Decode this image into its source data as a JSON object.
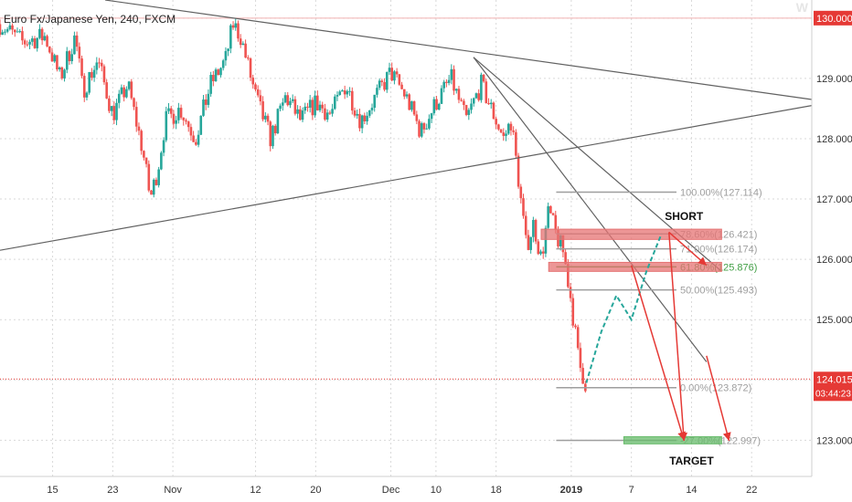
{
  "symbol_title": "Euro Fx/Japanese Yen, 240, FXCM",
  "watermark": "W",
  "colors": {
    "up": "#26a69a",
    "down": "#ef5350",
    "price_line": "#e53935",
    "grid": "#d9d9d9",
    "fib_gray": "#9e9e9e",
    "fib_green": "#43a047",
    "zone_red": "#e57373",
    "zone_green": "#66bb6a",
    "arrow": "#e53935",
    "trend": "#616161"
  },
  "chart_data": {
    "type": "candlestick",
    "title": "Euro Fx/Japanese Yen, 240, FXCM",
    "ylim": [
      122.4,
      130.3
    ],
    "y_ticks": [
      {
        "value": 130.0,
        "label": "130.000"
      },
      {
        "value": 129.0,
        "label": "129.000"
      },
      {
        "value": 128.0,
        "label": "128.000"
      },
      {
        "value": 127.0,
        "label": "127.000"
      },
      {
        "value": 126.0,
        "label": "126.000"
      },
      {
        "value": 125.0,
        "label": "125.000"
      },
      {
        "value": 124.0,
        "label": "124.000"
      },
      {
        "value": 123.0,
        "label": "123.000"
      }
    ],
    "x_ticks": [
      {
        "t": 1,
        "label": "15"
      },
      {
        "t": 9,
        "label": "23"
      },
      {
        "t": 17,
        "label": "Nov"
      },
      {
        "t": 28,
        "label": "12"
      },
      {
        "t": 36,
        "label": "20"
      },
      {
        "t": 46,
        "label": "Dec"
      },
      {
        "t": 52,
        "label": "10"
      },
      {
        "t": 60,
        "label": "18"
      },
      {
        "t": 70,
        "label": "2019"
      },
      {
        "t": 78,
        "label": "7"
      },
      {
        "t": 86,
        "label": "14"
      },
      {
        "t": 94,
        "label": "22"
      }
    ],
    "x_range": [
      -6,
      102
    ],
    "close_path": [
      [
        -6,
        129.9
      ],
      [
        -3,
        129.6
      ],
      [
        0,
        129.7
      ],
      [
        2,
        129.0
      ],
      [
        4,
        129.7
      ],
      [
        5,
        128.8
      ],
      [
        7,
        129.3
      ],
      [
        9,
        128.4
      ],
      [
        11,
        128.9
      ],
      [
        13,
        127.8
      ],
      [
        14,
        127.0
      ],
      [
        15,
        127.5
      ],
      [
        16,
        128.3
      ],
      [
        18,
        128.5
      ],
      [
        20,
        128.0
      ],
      [
        22,
        128.9
      ],
      [
        24,
        129.3
      ],
      [
        25,
        129.9
      ],
      [
        26,
        129.7
      ],
      [
        28,
        128.7
      ],
      [
        30,
        128.0
      ],
      [
        32,
        128.7
      ],
      [
        34,
        128.3
      ],
      [
        36,
        128.6
      ],
      [
        38,
        128.4
      ],
      [
        40,
        128.9
      ],
      [
        42,
        128.3
      ],
      [
        44,
        128.7
      ],
      [
        46,
        129.1
      ],
      [
        48,
        128.7
      ],
      [
        50,
        128.1
      ],
      [
        52,
        128.6
      ],
      [
        54,
        129.0
      ],
      [
        56,
        128.3
      ],
      [
        58,
        128.9
      ],
      [
        60,
        128.3
      ],
      [
        61,
        128.0
      ],
      [
        62,
        128.3
      ],
      [
        63,
        127.3
      ],
      [
        64,
        126.2
      ],
      [
        65,
        126.6
      ],
      [
        66,
        126.0
      ],
      [
        67,
        126.8
      ],
      [
        68,
        126.4
      ],
      [
        69,
        126.1
      ],
      [
        70,
        125.3
      ],
      [
        71,
        124.3
      ],
      [
        72,
        123.9
      ]
    ],
    "trend_lines": [
      {
        "from": [
          8,
          130.3
        ],
        "to": [
          102,
          128.65
        ]
      },
      {
        "from": [
          -6,
          126.15
        ],
        "to": [
          102,
          128.55
        ]
      },
      {
        "from": [
          57,
          129.35
        ],
        "to": [
          90,
          125.8
        ]
      },
      {
        "from": [
          57,
          129.35
        ],
        "to": [
          88,
          124.3
        ]
      }
    ],
    "fib_levels": [
      {
        "ratio": "100.00%",
        "value": 127.114,
        "label": "100.00%(127.114)",
        "color": "gray"
      },
      {
        "ratio": "78.60%",
        "value": 126.421,
        "label": "78.60%(126.421)",
        "color": "gray"
      },
      {
        "ratio": "71.00%",
        "value": 126.174,
        "label": "71.00%(126.174)",
        "color": "gray"
      },
      {
        "ratio": "61.80%",
        "value": 125.876,
        "label": "61.80%(125.876)",
        "color": "green"
      },
      {
        "ratio": "50.00%",
        "value": 125.493,
        "label": "50.00%(125.493)",
        "color": "gray"
      },
      {
        "ratio": "0.00%",
        "value": 123.872,
        "label": "0.00%(123.872)",
        "color": "gray"
      },
      {
        "ratio": "-27.00%",
        "value": 122.997,
        "label": "-27.00%(122.997)",
        "color": "gray"
      }
    ],
    "zones": [
      {
        "name": "short-zone",
        "y": [
          126.33,
          126.5
        ],
        "t": [
          66,
          90
        ],
        "color": "red"
      },
      {
        "name": "fib-618-zone",
        "y": [
          125.8,
          125.95
        ],
        "t": [
          67,
          90
        ],
        "color": "red"
      },
      {
        "name": "target-zone",
        "y": [
          122.94,
          123.06
        ],
        "t": [
          77,
          90
        ],
        "color": "green"
      }
    ],
    "projection_path": [
      [
        72,
        123.95
      ],
      [
        74,
        124.8
      ],
      [
        76,
        125.4
      ],
      [
        78,
        125.0
      ],
      [
        80,
        125.8
      ],
      [
        82,
        126.42
      ]
    ],
    "arrows": [
      {
        "from": [
          83,
          126.45
        ],
        "to": [
          85,
          122.99
        ]
      },
      {
        "from": [
          83,
          126.45
        ],
        "to": [
          88,
          125.9
        ]
      },
      {
        "from": [
          78,
          125.9
        ],
        "to": [
          85,
          123.0
        ]
      },
      {
        "from": [
          88,
          124.4
        ],
        "to": [
          91,
          122.99
        ]
      }
    ],
    "annotations": [
      {
        "text": "SHORT",
        "t": 85,
        "value": 126.65
      },
      {
        "text": "TARGET",
        "t": 86,
        "value": 122.6
      }
    ],
    "current_price": {
      "value": 124.015,
      "label": "124.015",
      "countdown": "03:44:23"
    }
  }
}
